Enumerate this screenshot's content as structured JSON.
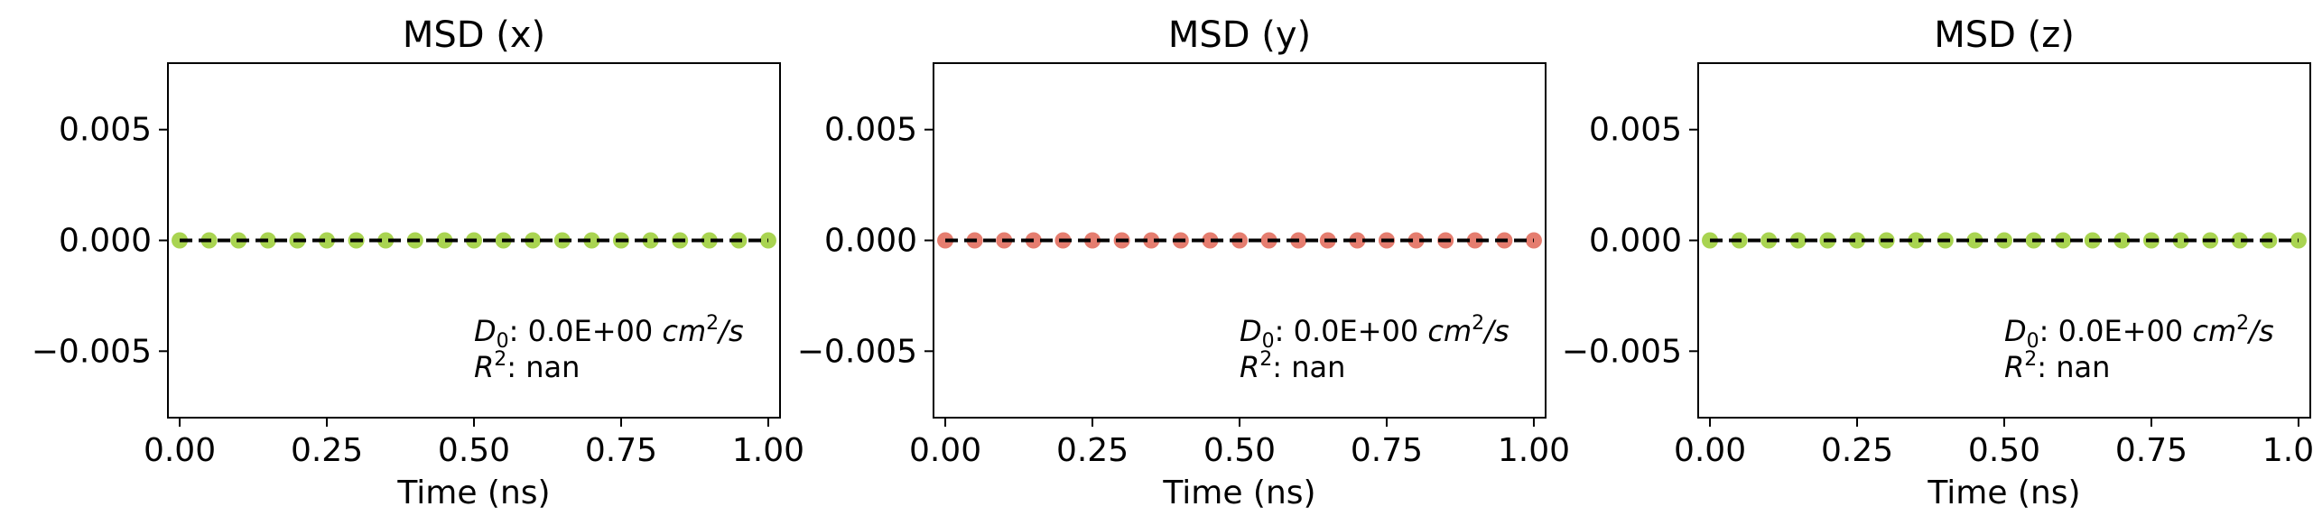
{
  "chart_data": [
    {
      "type": "line",
      "title": "MSD (x)",
      "xlabel": "Time (ns)",
      "ylabel": "",
      "xlim": [
        -0.02,
        1.02
      ],
      "ylim": [
        -0.008,
        0.008
      ],
      "xticks": [
        "0.00",
        "0.25",
        "0.50",
        "0.75",
        "1.00"
      ],
      "yticks": [
        "0.005",
        "0.000",
        "−0.005"
      ],
      "series": [
        {
          "style": "markers",
          "color": "#9acd32",
          "x": [
            0.0,
            0.05,
            0.1,
            0.15,
            0.2,
            0.25,
            0.3,
            0.35,
            0.4,
            0.45,
            0.5,
            0.55,
            0.6,
            0.65,
            0.7,
            0.75,
            0.8,
            0.85,
            0.9,
            0.95,
            1.0
          ],
          "values": [
            0,
            0,
            0,
            0,
            0,
            0,
            0,
            0,
            0,
            0,
            0,
            0,
            0,
            0,
            0,
            0,
            0,
            0,
            0,
            0,
            0
          ]
        },
        {
          "style": "dashed-fit",
          "color": "#000000",
          "x": [
            0.0,
            1.0
          ],
          "values": [
            0,
            0
          ]
        }
      ],
      "annotation": {
        "d_label": "D",
        "d_sub": "0",
        "d_value": ": 0.0E+00 ",
        "d_unit": "cm",
        "d_unit_sup": "2",
        "d_unit_tail": "/s",
        "r_label": "R",
        "r_sup": "2",
        "r_value": ": nan"
      },
      "grid": false
    },
    {
      "type": "line",
      "title": "MSD (y)",
      "xlabel": "Time (ns)",
      "ylabel": "",
      "xlim": [
        -0.02,
        1.02
      ],
      "ylim": [
        -0.008,
        0.008
      ],
      "xticks": [
        "0.00",
        "0.25",
        "0.50",
        "0.75",
        "1.00"
      ],
      "yticks": [
        "0.005",
        "0.000",
        "−0.005"
      ],
      "series": [
        {
          "style": "markers",
          "color": "#e06656",
          "x": [
            0.0,
            0.05,
            0.1,
            0.15,
            0.2,
            0.25,
            0.3,
            0.35,
            0.4,
            0.45,
            0.5,
            0.55,
            0.6,
            0.65,
            0.7,
            0.75,
            0.8,
            0.85,
            0.9,
            0.95,
            1.0
          ],
          "values": [
            0,
            0,
            0,
            0,
            0,
            0,
            0,
            0,
            0,
            0,
            0,
            0,
            0,
            0,
            0,
            0,
            0,
            0,
            0,
            0,
            0
          ]
        },
        {
          "style": "dashed-fit",
          "color": "#000000",
          "x": [
            0.0,
            1.0
          ],
          "values": [
            0,
            0
          ]
        }
      ],
      "annotation": {
        "d_label": "D",
        "d_sub": "0",
        "d_value": ": 0.0E+00 ",
        "d_unit": "cm",
        "d_unit_sup": "2",
        "d_unit_tail": "/s",
        "r_label": "R",
        "r_sup": "2",
        "r_value": ": nan"
      },
      "grid": false
    },
    {
      "type": "line",
      "title": "MSD (z)",
      "xlabel": "Time (ns)",
      "ylabel": "",
      "xlim": [
        -0.02,
        1.02
      ],
      "ylim": [
        -0.008,
        0.008
      ],
      "xticks": [
        "0.00",
        "0.25",
        "0.50",
        "0.75",
        "1.00"
      ],
      "yticks": [
        "0.005",
        "0.000",
        "−0.005"
      ],
      "series": [
        {
          "style": "markers",
          "color": "#9acd32",
          "x": [
            0.0,
            0.05,
            0.1,
            0.15,
            0.2,
            0.25,
            0.3,
            0.35,
            0.4,
            0.45,
            0.5,
            0.55,
            0.6,
            0.65,
            0.7,
            0.75,
            0.8,
            0.85,
            0.9,
            0.95,
            1.0
          ],
          "values": [
            0,
            0,
            0,
            0,
            0,
            0,
            0,
            0,
            0,
            0,
            0,
            0,
            0,
            0,
            0,
            0,
            0,
            0,
            0,
            0,
            0
          ]
        },
        {
          "style": "dashed-fit",
          "color": "#000000",
          "x": [
            0.0,
            1.0
          ],
          "values": [
            0,
            0
          ]
        }
      ],
      "annotation": {
        "d_label": "D",
        "d_sub": "0",
        "d_value": ": 0.0E+00 ",
        "d_unit": "cm",
        "d_unit_sup": "2",
        "d_unit_tail": "/s",
        "r_label": "R",
        "r_sup": "2",
        "r_value": ": nan"
      },
      "grid": false
    }
  ]
}
